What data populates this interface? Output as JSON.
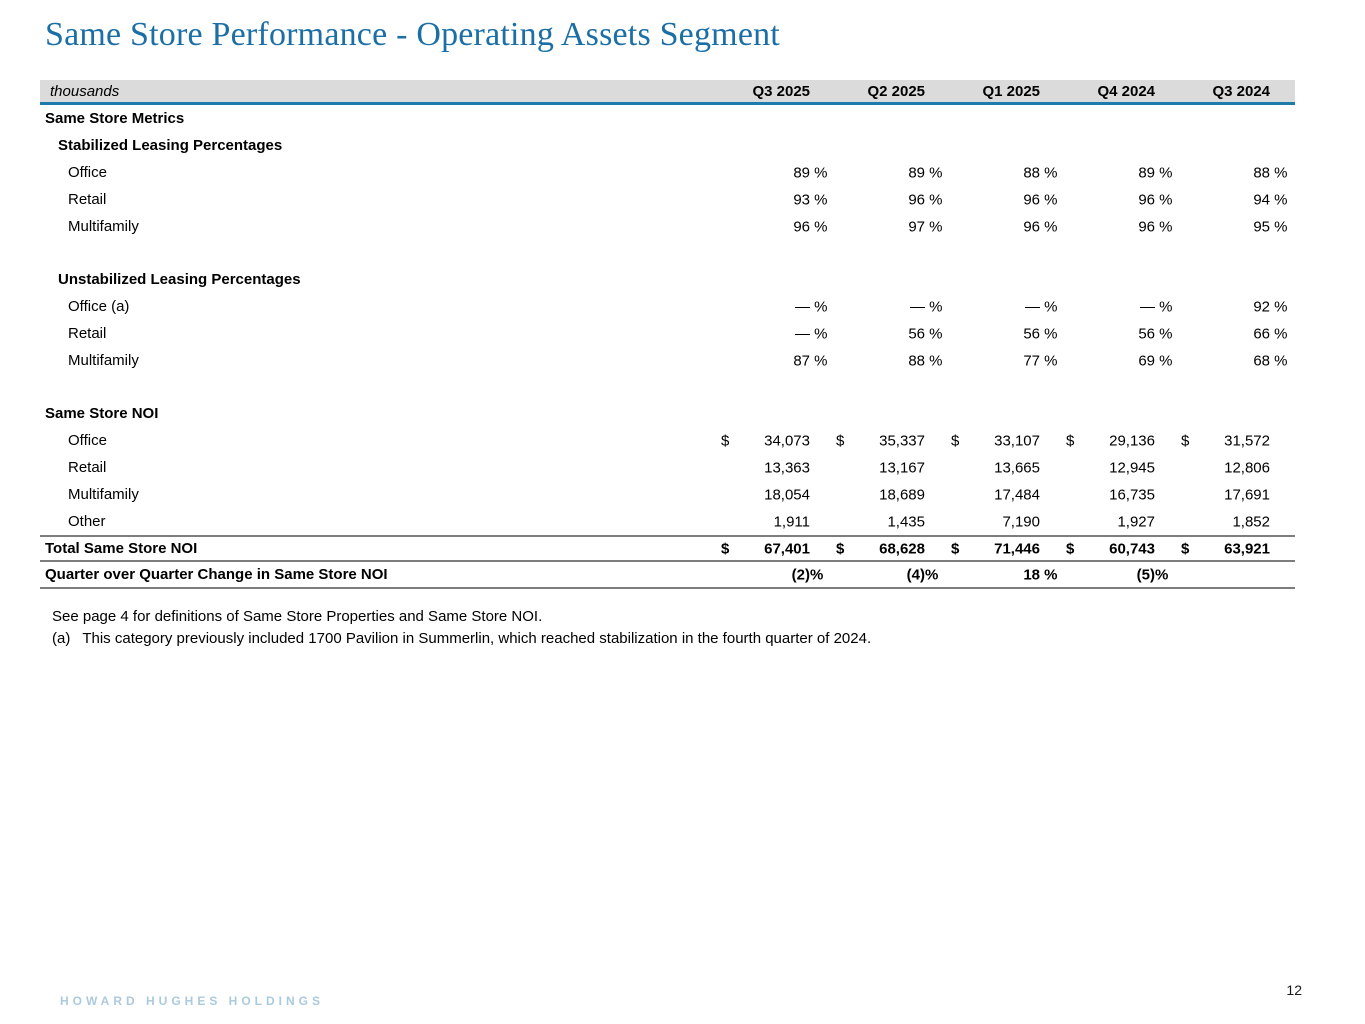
{
  "page": {
    "title": "Same Store Performance - Operating Assets Segment",
    "page_number": "12",
    "footer_brand": "HOWARD HUGHES HOLDINGS"
  },
  "colors": {
    "title_blue": "#1c6fa6",
    "header_band_gray": "#dbdbdb",
    "header_rule_blue": "#1e7bab",
    "table_line_gray": "#7d7d7d",
    "footer_brand_blue": "#accadd"
  },
  "table": {
    "unit_label": "thousands",
    "columns": [
      "Q3 2025",
      "Q2 2025",
      "Q1 2025",
      "Q4 2024",
      "Q3 2024"
    ],
    "rows": [
      {
        "type": "section",
        "label": "Same Store Metrics",
        "cells": []
      },
      {
        "type": "subsection",
        "label": "Stabilized Leasing Percentages",
        "cells": []
      },
      {
        "type": "item",
        "label": "Office",
        "cells": [
          {
            "v": "89",
            "s": " %"
          },
          {
            "v": "89",
            "s": " %"
          },
          {
            "v": "88",
            "s": " %"
          },
          {
            "v": "89",
            "s": " %"
          },
          {
            "v": "88",
            "s": " %"
          }
        ]
      },
      {
        "type": "item",
        "label": "Retail",
        "cells": [
          {
            "v": "93",
            "s": " %"
          },
          {
            "v": "96",
            "s": " %"
          },
          {
            "v": "96",
            "s": " %"
          },
          {
            "v": "96",
            "s": " %"
          },
          {
            "v": "94",
            "s": " %"
          }
        ]
      },
      {
        "type": "item",
        "label": "Multifamily",
        "cells": [
          {
            "v": "96",
            "s": " %"
          },
          {
            "v": "97",
            "s": " %"
          },
          {
            "v": "96",
            "s": " %"
          },
          {
            "v": "96",
            "s": " %"
          },
          {
            "v": "95",
            "s": " %"
          }
        ]
      },
      {
        "type": "spacer"
      },
      {
        "type": "subsection",
        "label": "Unstabilized Leasing Percentages",
        "cells": []
      },
      {
        "type": "item",
        "label": "Office (a)",
        "cells": [
          {
            "v": "—",
            "s": " %"
          },
          {
            "v": "—",
            "s": " %"
          },
          {
            "v": "—",
            "s": " %"
          },
          {
            "v": "—",
            "s": " %"
          },
          {
            "v": "92",
            "s": " %"
          }
        ]
      },
      {
        "type": "item",
        "label": "Retail",
        "cells": [
          {
            "v": "—",
            "s": " %"
          },
          {
            "v": "56",
            "s": " %"
          },
          {
            "v": "56",
            "s": " %"
          },
          {
            "v": "56",
            "s": " %"
          },
          {
            "v": "66",
            "s": " %"
          }
        ]
      },
      {
        "type": "item",
        "label": "Multifamily",
        "cells": [
          {
            "v": "87",
            "s": " %"
          },
          {
            "v": "88",
            "s": " %"
          },
          {
            "v": "77",
            "s": " %"
          },
          {
            "v": "69",
            "s": " %"
          },
          {
            "v": "68",
            "s": " %"
          }
        ]
      },
      {
        "type": "spacer"
      },
      {
        "type": "section",
        "label": "Same Store NOI",
        "cells": []
      },
      {
        "type": "item",
        "label": "Office",
        "cells": [
          {
            "d": "$",
            "v": "34,073"
          },
          {
            "d": "$",
            "v": "35,337"
          },
          {
            "d": "$",
            "v": "33,107"
          },
          {
            "d": "$",
            "v": "29,136"
          },
          {
            "d": "$",
            "v": "31,572"
          }
        ]
      },
      {
        "type": "item",
        "label": "Retail",
        "cells": [
          {
            "v": "13,363"
          },
          {
            "v": "13,167"
          },
          {
            "v": "13,665"
          },
          {
            "v": "12,945"
          },
          {
            "v": "12,806"
          }
        ]
      },
      {
        "type": "item",
        "label": "Multifamily",
        "cells": [
          {
            "v": "18,054"
          },
          {
            "v": "18,689"
          },
          {
            "v": "17,484"
          },
          {
            "v": "16,735"
          },
          {
            "v": "17,691"
          }
        ]
      },
      {
        "type": "item",
        "label": "Other",
        "cells": [
          {
            "v": "1,911"
          },
          {
            "v": "1,435"
          },
          {
            "v": "7,190"
          },
          {
            "v": "1,927"
          },
          {
            "v": "1,852"
          }
        ]
      },
      {
        "type": "total",
        "label": "Total Same Store NOI",
        "cells": [
          {
            "d": "$",
            "v": "67,401"
          },
          {
            "d": "$",
            "v": "68,628"
          },
          {
            "d": "$",
            "v": "71,446"
          },
          {
            "d": "$",
            "v": "60,743"
          },
          {
            "d": "$",
            "v": "63,921"
          }
        ]
      },
      {
        "type": "qoq",
        "label": "Quarter over Quarter Change in Same Store NOI",
        "cells": [
          {
            "v": "(2)",
            "s": "%"
          },
          {
            "v": "(4)",
            "s": "%"
          },
          {
            "v": "18",
            "s": " %"
          },
          {
            "v": "(5)",
            "s": "%"
          },
          {}
        ]
      }
    ]
  },
  "footnotes": {
    "note1": "See page 4 for definitions of Same Store Properties and Same Store NOI.",
    "note2_marker": "(a)",
    "note2_text": "This category previously included 1700 Pavilion in Summerlin, which reached stabilization in the fourth quarter of 2024."
  }
}
